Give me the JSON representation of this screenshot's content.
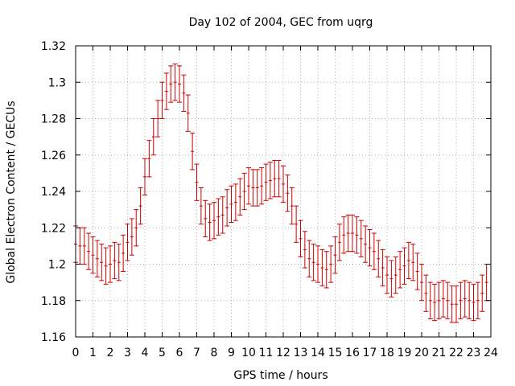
{
  "chart_data": {
    "type": "line",
    "title": "Day 102 of 2004, GEC from uqrg",
    "xlabel": "GPS time / hours",
    "ylabel": "Global Electron Content / GECUs",
    "xlim": [
      0,
      24
    ],
    "ylim": [
      1.16,
      1.32
    ],
    "x_ticks": [
      "0",
      "1",
      "2",
      "3",
      "4",
      "5",
      "6",
      "7",
      "8",
      "9",
      "10",
      "11",
      "12",
      "13",
      "14",
      "15",
      "16",
      "17",
      "18",
      "19",
      "20",
      "21",
      "22",
      "23",
      "24"
    ],
    "y_ticks": [
      "1.16",
      "1.18",
      "1.2",
      "1.22",
      "1.24",
      "1.26",
      "1.28",
      "1.3",
      "1.32"
    ],
    "grid": true,
    "color": "#cc0000",
    "series": [
      {
        "error": 0.01,
        "points": [
          [
            0.0,
            1.211
          ],
          [
            0.25,
            1.21
          ],
          [
            0.5,
            1.21
          ],
          [
            0.75,
            1.207
          ],
          [
            1.0,
            1.205
          ],
          [
            1.25,
            1.203
          ],
          [
            1.5,
            1.201
          ],
          [
            1.75,
            1.199
          ],
          [
            2.0,
            1.2
          ],
          [
            2.25,
            1.202
          ],
          [
            2.5,
            1.201
          ],
          [
            2.75,
            1.206
          ],
          [
            3.0,
            1.212
          ],
          [
            3.25,
            1.215
          ],
          [
            3.5,
            1.22
          ],
          [
            3.75,
            1.232
          ],
          [
            4.0,
            1.248
          ],
          [
            4.25,
            1.258
          ],
          [
            4.5,
            1.27
          ],
          [
            4.75,
            1.28
          ],
          [
            5.0,
            1.29
          ],
          [
            5.25,
            1.295
          ],
          [
            5.5,
            1.299
          ],
          [
            5.75,
            1.3
          ],
          [
            6.0,
            1.299
          ],
          [
            6.25,
            1.294
          ],
          [
            6.5,
            1.283
          ],
          [
            6.75,
            1.262
          ],
          [
            7.0,
            1.245
          ],
          [
            7.25,
            1.232
          ],
          [
            7.5,
            1.225
          ],
          [
            7.75,
            1.223
          ],
          [
            8.0,
            1.224
          ],
          [
            8.25,
            1.226
          ],
          [
            8.5,
            1.227
          ],
          [
            8.75,
            1.231
          ],
          [
            9.0,
            1.233
          ],
          [
            9.25,
            1.234
          ],
          [
            9.5,
            1.237
          ],
          [
            9.75,
            1.24
          ],
          [
            10.0,
            1.243
          ],
          [
            10.25,
            1.242
          ],
          [
            10.5,
            1.242
          ],
          [
            10.75,
            1.243
          ],
          [
            11.0,
            1.245
          ],
          [
            11.25,
            1.246
          ],
          [
            11.5,
            1.247
          ],
          [
            11.75,
            1.247
          ],
          [
            12.0,
            1.244
          ],
          [
            12.25,
            1.239
          ],
          [
            12.5,
            1.232
          ],
          [
            12.75,
            1.222
          ],
          [
            13.0,
            1.214
          ],
          [
            13.25,
            1.208
          ],
          [
            13.5,
            1.203
          ],
          [
            13.75,
            1.201
          ],
          [
            14.0,
            1.2
          ],
          [
            14.25,
            1.198
          ],
          [
            14.5,
            1.197
          ],
          [
            14.75,
            1.2
          ],
          [
            15.0,
            1.205
          ],
          [
            15.25,
            1.212
          ],
          [
            15.5,
            1.216
          ],
          [
            15.75,
            1.217
          ],
          [
            16.0,
            1.217
          ],
          [
            16.25,
            1.216
          ],
          [
            16.5,
            1.214
          ],
          [
            16.75,
            1.211
          ],
          [
            17.0,
            1.209
          ],
          [
            17.25,
            1.207
          ],
          [
            17.5,
            1.203
          ],
          [
            17.75,
            1.198
          ],
          [
            18.0,
            1.194
          ],
          [
            18.25,
            1.192
          ],
          [
            18.5,
            1.194
          ],
          [
            18.75,
            1.197
          ],
          [
            19.0,
            1.199
          ],
          [
            19.25,
            1.202
          ],
          [
            19.5,
            1.201
          ],
          [
            19.75,
            1.196
          ],
          [
            20.0,
            1.19
          ],
          [
            20.25,
            1.184
          ],
          [
            20.5,
            1.18
          ],
          [
            20.75,
            1.179
          ],
          [
            21.0,
            1.18
          ],
          [
            21.25,
            1.181
          ],
          [
            21.5,
            1.18
          ],
          [
            21.75,
            1.178
          ],
          [
            22.0,
            1.178
          ],
          [
            22.25,
            1.18
          ],
          [
            22.5,
            1.181
          ],
          [
            22.75,
            1.18
          ],
          [
            23.0,
            1.179
          ],
          [
            23.25,
            1.18
          ],
          [
            23.5,
            1.184
          ],
          [
            23.75,
            1.19
          ]
        ]
      }
    ]
  }
}
